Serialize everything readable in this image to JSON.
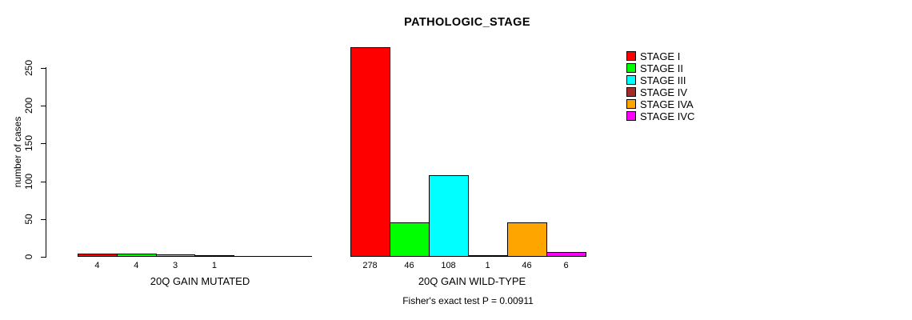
{
  "chart_data": {
    "type": "bar",
    "title": "PATHOLOGIC_STAGE",
    "ylabel": "number of cases",
    "xlabel": "",
    "ylim": [
      0,
      250
    ],
    "yticks": [
      0,
      50,
      100,
      150,
      200,
      250
    ],
    "grid": false,
    "legend_position": "right",
    "stages": [
      "STAGE I",
      "STAGE II",
      "STAGE III",
      "STAGE IV",
      "STAGE IVA",
      "STAGE IVC"
    ],
    "colors": [
      "#ff0000",
      "#00ff00",
      "#00ffff",
      "#a52a2a",
      "#ffa500",
      "#ff00ff"
    ],
    "groups": [
      {
        "label": "20Q GAIN MUTATED",
        "values": [
          4,
          4,
          3,
          1,
          0,
          0
        ]
      },
      {
        "label": "20Q GAIN WILD-TYPE",
        "values": [
          278,
          46,
          108,
          1,
          46,
          6
        ]
      }
    ],
    "annotation": "Fisher's exact test P = 0.00911"
  }
}
